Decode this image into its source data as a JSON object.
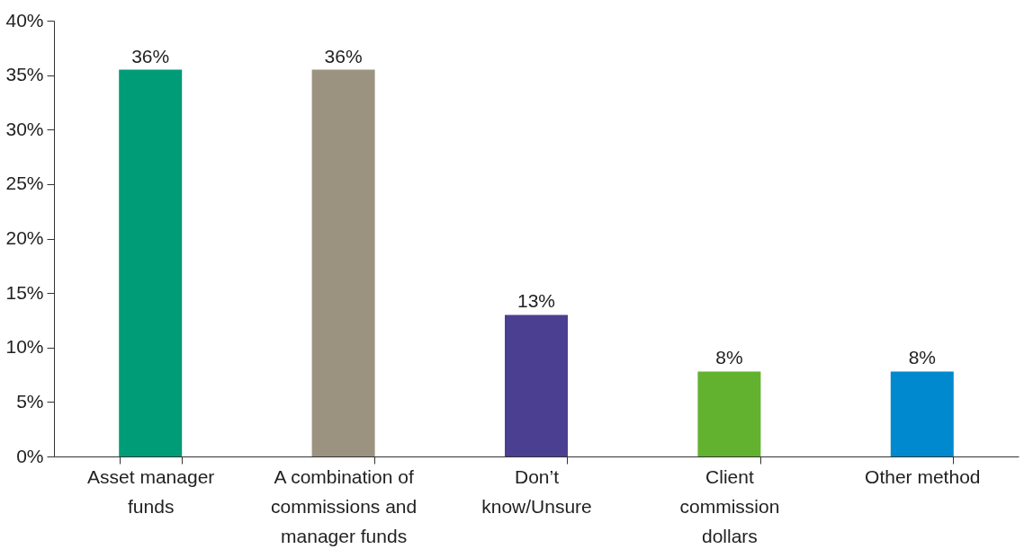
{
  "chart_data": {
    "type": "bar",
    "categories": [
      "Asset manager funds",
      "A combination of commissions and manager funds",
      "Don’t know/Unsure",
      "Client commission dollars",
      "Other method"
    ],
    "values": [
      35.5,
      35.5,
      13,
      7.8,
      7.8
    ],
    "value_labels": [
      "36%",
      "36%",
      "13%",
      "8%",
      "8%"
    ],
    "colors": [
      "#009b77",
      "#9c9280",
      "#4b3f92",
      "#62b22f",
      "#0089cf"
    ],
    "ylim": [
      0,
      40
    ],
    "yticks": [
      {
        "value": 0,
        "label": "0%"
      },
      {
        "value": 5,
        "label": "5%"
      },
      {
        "value": 10,
        "label": "10%"
      },
      {
        "value": 15,
        "label": "15%"
      },
      {
        "value": 20,
        "label": "20%"
      },
      {
        "value": 25,
        "label": "25%"
      },
      {
        "value": 30,
        "label": "30%"
      },
      {
        "value": 35,
        "label": "35%"
      },
      {
        "value": 40,
        "label": "40%"
      }
    ],
    "grid": false
  }
}
